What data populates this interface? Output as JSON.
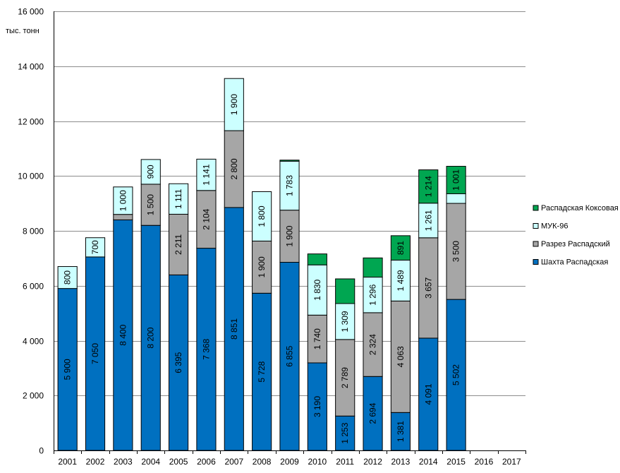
{
  "chart_data": {
    "type": "bar",
    "stacked": true,
    "unit_label": "тыс. тонн",
    "ylim": [
      0,
      16000
    ],
    "yticks": [
      0,
      2000,
      4000,
      6000,
      8000,
      10000,
      12000,
      14000,
      16000
    ],
    "ytick_labels": [
      "0",
      "2 000",
      "4 000",
      "6 000",
      "8 000",
      "10 000",
      "12 000",
      "14 000",
      "16 000"
    ],
    "grid": true,
    "legend_position": "right",
    "categories": [
      "2001",
      "2002",
      "2003",
      "2004",
      "2005",
      "2006",
      "2007",
      "2008",
      "2009",
      "2010",
      "2011",
      "2012",
      "2013",
      "2014",
      "2015",
      "2016",
      "2017"
    ],
    "series": [
      {
        "name": "Шахта Распадская",
        "color": "#0070c0",
        "values": [
          5900,
          7050,
          8400,
          8200,
          6395,
          7368,
          8851,
          5728,
          6855,
          3190,
          1253,
          2694,
          1381,
          4091,
          5502,
          null,
          null
        ],
        "labels": [
          "5 900",
          "7 050",
          "8 400",
          "8 200",
          "6 395",
          "7 368",
          "8 851",
          "5 728",
          "6 855",
          "3 190",
          "1 253",
          "2 694",
          "1 381",
          "4 091",
          "5 502",
          "",
          ""
        ]
      },
      {
        "name": "Разрез Распадский",
        "color": "#a6a6a6",
        "values": [
          null,
          null,
          200,
          1500,
          2211,
          2104,
          2800,
          1900,
          1900,
          1740,
          2789,
          2324,
          4063,
          3657,
          3500,
          null,
          null
        ],
        "labels": [
          "",
          "",
          "",
          "1 500",
          "2 211",
          "2 104",
          "2 800",
          "1 900",
          "1 900",
          "1 740",
          "2 789",
          "2 324",
          "4 063",
          "3 657",
          "3 500",
          "",
          ""
        ]
      },
      {
        "name": "МУК-96",
        "color": "#ccffff",
        "values": [
          800,
          700,
          1000,
          900,
          1111,
          1141,
          1900,
          1800,
          1783,
          1830,
          1309,
          1296,
          1489,
          1261,
          350,
          null,
          null
        ],
        "labels": [
          "800",
          "700",
          "1 000",
          "900",
          "1 111",
          "1 141",
          "1 900",
          "1 800",
          "1 783",
          "1 830",
          "1 309",
          "1 296",
          "1 489",
          "1 261",
          "",
          "",
          ""
        ]
      },
      {
        "name": "Распадская Коксовая",
        "color": "#00a651",
        "values": [
          null,
          null,
          null,
          null,
          null,
          null,
          null,
          null,
          40,
          400,
          900,
          700,
          891,
          1214,
          1001,
          null,
          null
        ],
        "labels": [
          "",
          "",
          "",
          "",
          "",
          "",
          "",
          "",
          "",
          "",
          "",
          "",
          "891",
          "1 214",
          "1 001",
          "",
          ""
        ]
      }
    ],
    "legend_order": [
      "Распадская Коксовая",
      "МУК-96",
      "Разрез Распадский",
      "Шахта Распадская"
    ]
  }
}
